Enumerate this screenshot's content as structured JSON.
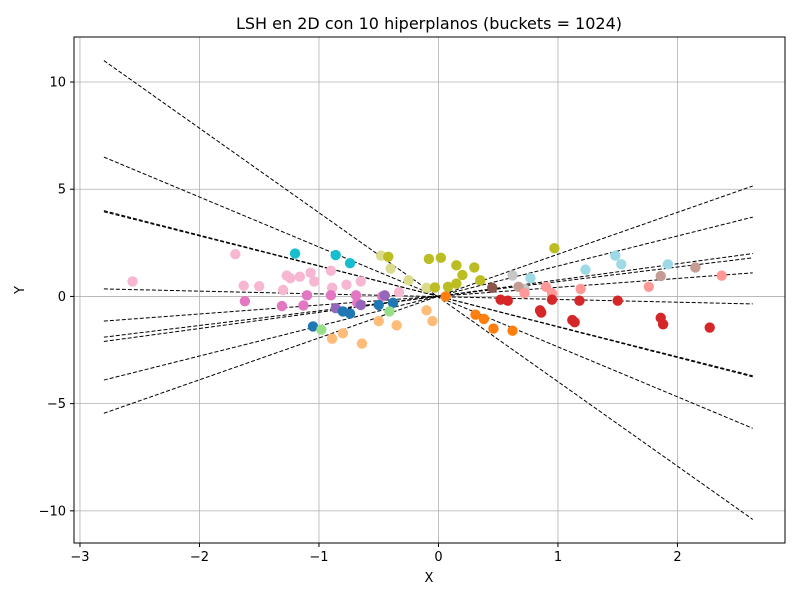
{
  "chart_data": {
    "type": "scatter",
    "title": "LSH en 2D con 10 hiperplanos (buckets = 1024)",
    "xlabel": "X",
    "ylabel": "Y",
    "xlim": [
      -3.05,
      2.9
    ],
    "ylim": [
      -11.5,
      12.1
    ],
    "grid": true,
    "xticks": [
      -3,
      -2,
      -1,
      0,
      1,
      2
    ],
    "yticks": [
      -10,
      -5,
      0,
      5,
      10
    ],
    "xtick_labels": [
      "−3",
      "−2",
      "−1",
      "0",
      "1",
      "2"
    ],
    "ytick_labels": [
      "−10",
      "−5",
      "0",
      "5",
      "10"
    ],
    "hyperplanes": [
      {
        "x": [
          -2.8,
          2.63
        ],
        "y": [
          11.0,
          -10.4
        ]
      },
      {
        "x": [
          -2.8,
          2.63
        ],
        "y": [
          6.5,
          -6.15
        ]
      },
      {
        "x": [
          -2.8,
          2.63
        ],
        "y": [
          4.0,
          -3.75
        ]
      },
      {
        "x": [
          -2.8,
          2.63
        ],
        "y": [
          3.95,
          -3.7
        ]
      },
      {
        "x": [
          -2.8,
          2.63
        ],
        "y": [
          0.35,
          -0.35
        ]
      },
      {
        "x": [
          -2.8,
          2.63
        ],
        "y": [
          -1.15,
          1.1
        ]
      },
      {
        "x": [
          -2.8,
          2.63
        ],
        "y": [
          -1.9,
          1.8
        ]
      },
      {
        "x": [
          -2.8,
          2.63
        ],
        "y": [
          -2.1,
          2.0
        ]
      },
      {
        "x": [
          -2.8,
          2.63
        ],
        "y": [
          -3.9,
          3.7
        ]
      },
      {
        "x": [
          -2.8,
          2.63
        ],
        "y": [
          -5.45,
          5.15
        ]
      }
    ],
    "points": [
      {
        "x": -2.56,
        "y": 0.7,
        "color": "#f7b6d2"
      },
      {
        "x": -1.7,
        "y": 1.97,
        "color": "#f7b6d2"
      },
      {
        "x": -1.63,
        "y": 0.5,
        "color": "#f7b6d2"
      },
      {
        "x": -1.5,
        "y": 0.48,
        "color": "#f7b6d2"
      },
      {
        "x": -1.3,
        "y": 0.3,
        "color": "#f7b6d2"
      },
      {
        "x": -1.27,
        "y": 0.97,
        "color": "#f7b6d2"
      },
      {
        "x": -1.24,
        "y": 0.85,
        "color": "#f7b6d2"
      },
      {
        "x": -1.16,
        "y": 0.92,
        "color": "#f7b6d2"
      },
      {
        "x": -1.07,
        "y": 1.1,
        "color": "#f7b6d2"
      },
      {
        "x": -1.04,
        "y": 0.7,
        "color": "#f7b6d2"
      },
      {
        "x": -0.9,
        "y": 1.2,
        "color": "#f7b6d2"
      },
      {
        "x": -0.89,
        "y": 0.4,
        "color": "#f7b6d2"
      },
      {
        "x": -0.77,
        "y": 0.55,
        "color": "#f7b6d2"
      },
      {
        "x": -0.65,
        "y": 0.7,
        "color": "#f7b6d2"
      },
      {
        "x": -0.33,
        "y": 0.2,
        "color": "#f7b6d2"
      },
      {
        "x": -1.62,
        "y": -0.22,
        "color": "#e377c2"
      },
      {
        "x": -1.31,
        "y": -0.45,
        "color": "#e377c2"
      },
      {
        "x": -1.13,
        "y": -0.42,
        "color": "#e377c2"
      },
      {
        "x": -1.1,
        "y": 0.05,
        "color": "#e377c2"
      },
      {
        "x": -0.9,
        "y": 0.05,
        "color": "#e377c2"
      },
      {
        "x": -0.69,
        "y": 0.05,
        "color": "#e377c2"
      },
      {
        "x": -0.68,
        "y": -0.3,
        "color": "#e377c2"
      },
      {
        "x": -0.47,
        "y": 0.0,
        "color": "#e377c2"
      },
      {
        "x": -0.86,
        "y": -0.55,
        "color": "#9467bd"
      },
      {
        "x": -0.65,
        "y": -0.4,
        "color": "#9467bd"
      },
      {
        "x": -0.45,
        "y": 0.05,
        "color": "#9467bd"
      },
      {
        "x": -1.05,
        "y": -1.4,
        "color": "#1f77b4"
      },
      {
        "x": -0.8,
        "y": -0.7,
        "color": "#1f77b4"
      },
      {
        "x": -0.74,
        "y": -0.8,
        "color": "#1f77b4"
      },
      {
        "x": -0.5,
        "y": -0.4,
        "color": "#1f77b4"
      },
      {
        "x": -0.38,
        "y": -0.3,
        "color": "#1f77b4"
      },
      {
        "x": -1.2,
        "y": 2.0,
        "color": "#17becf"
      },
      {
        "x": -0.86,
        "y": 1.93,
        "color": "#17becf"
      },
      {
        "x": -0.74,
        "y": 1.55,
        "color": "#17becf"
      },
      {
        "x": 1.48,
        "y": 1.9,
        "color": "#9edae5"
      },
      {
        "x": 1.53,
        "y": 1.5,
        "color": "#9edae5"
      },
      {
        "x": 1.23,
        "y": 1.25,
        "color": "#9edae5"
      },
      {
        "x": 1.92,
        "y": 1.5,
        "color": "#9edae5"
      },
      {
        "x": 0.77,
        "y": 0.85,
        "color": "#9edae5"
      },
      {
        "x": -0.89,
        "y": -1.97,
        "color": "#ffbb78"
      },
      {
        "x": -0.8,
        "y": -1.72,
        "color": "#ffbb78"
      },
      {
        "x": -0.64,
        "y": -2.2,
        "color": "#ffbb78"
      },
      {
        "x": -0.5,
        "y": -1.15,
        "color": "#ffbb78"
      },
      {
        "x": -0.35,
        "y": -1.35,
        "color": "#ffbb78"
      },
      {
        "x": -0.1,
        "y": -0.65,
        "color": "#ffbb78"
      },
      {
        "x": -0.05,
        "y": -1.15,
        "color": "#ffbb78"
      },
      {
        "x": 0.31,
        "y": -0.85,
        "color": "#ff7f0e"
      },
      {
        "x": 0.38,
        "y": -1.05,
        "color": "#ff7f0e"
      },
      {
        "x": 0.46,
        "y": -1.5,
        "color": "#ff7f0e"
      },
      {
        "x": 0.62,
        "y": -1.6,
        "color": "#ff7f0e"
      },
      {
        "x": 0.06,
        "y": 0.0,
        "color": "#ff7f0e"
      },
      {
        "x": -0.98,
        "y": -1.55,
        "color": "#98df8a"
      },
      {
        "x": -0.41,
        "y": -0.7,
        "color": "#98df8a"
      },
      {
        "x": -0.48,
        "y": 1.9,
        "color": "#dbdb8d"
      },
      {
        "x": -0.4,
        "y": 1.3,
        "color": "#dbdb8d"
      },
      {
        "x": -0.25,
        "y": 0.75,
        "color": "#dbdb8d"
      },
      {
        "x": -0.1,
        "y": 0.4,
        "color": "#dbdb8d"
      },
      {
        "x": -0.42,
        "y": 1.85,
        "color": "#bcbd22"
      },
      {
        "x": -0.08,
        "y": 1.75,
        "color": "#bcbd22"
      },
      {
        "x": 0.02,
        "y": 1.8,
        "color": "#bcbd22"
      },
      {
        "x": 0.15,
        "y": 1.45,
        "color": "#bcbd22"
      },
      {
        "x": 0.3,
        "y": 1.35,
        "color": "#bcbd22"
      },
      {
        "x": 0.2,
        "y": 1.0,
        "color": "#bcbd22"
      },
      {
        "x": 0.35,
        "y": 0.75,
        "color": "#bcbd22"
      },
      {
        "x": 0.15,
        "y": 0.6,
        "color": "#bcbd22"
      },
      {
        "x": 0.08,
        "y": 0.45,
        "color": "#bcbd22"
      },
      {
        "x": -0.03,
        "y": 0.42,
        "color": "#bcbd22"
      },
      {
        "x": 0.97,
        "y": 2.25,
        "color": "#bcbd22"
      },
      {
        "x": 0.62,
        "y": 0.98,
        "color": "#c7c7c7"
      },
      {
        "x": 0.72,
        "y": 0.35,
        "color": "#c7c7c7"
      },
      {
        "x": 0.45,
        "y": 0.4,
        "color": "#8c564b"
      },
      {
        "x": 0.67,
        "y": 0.45,
        "color": "#c49c94"
      },
      {
        "x": 1.86,
        "y": 0.95,
        "color": "#c49c94"
      },
      {
        "x": 2.15,
        "y": 1.35,
        "color": "#c49c94"
      },
      {
        "x": 0.72,
        "y": 0.15,
        "color": "#ff9896"
      },
      {
        "x": 0.9,
        "y": 0.45,
        "color": "#ff9896"
      },
      {
        "x": 0.95,
        "y": 0.15,
        "color": "#ff9896"
      },
      {
        "x": 1.19,
        "y": 0.35,
        "color": "#ff9896"
      },
      {
        "x": 1.76,
        "y": 0.45,
        "color": "#ff9896"
      },
      {
        "x": 2.37,
        "y": 0.97,
        "color": "#ff9896"
      },
      {
        "x": 0.52,
        "y": -0.15,
        "color": "#d62728"
      },
      {
        "x": 0.58,
        "y": -0.2,
        "color": "#d62728"
      },
      {
        "x": 0.85,
        "y": -0.65,
        "color": "#d62728"
      },
      {
        "x": 0.86,
        "y": -0.75,
        "color": "#d62728"
      },
      {
        "x": 0.95,
        "y": -0.15,
        "color": "#d62728"
      },
      {
        "x": 1.12,
        "y": -1.1,
        "color": "#d62728"
      },
      {
        "x": 1.14,
        "y": -1.2,
        "color": "#d62728"
      },
      {
        "x": 1.18,
        "y": -0.2,
        "color": "#d62728"
      },
      {
        "x": 1.5,
        "y": -0.2,
        "color": "#d62728"
      },
      {
        "x": 1.86,
        "y": -1.0,
        "color": "#d62728"
      },
      {
        "x": 1.88,
        "y": -1.3,
        "color": "#d62728"
      },
      {
        "x": 2.27,
        "y": -1.45,
        "color": "#d62728"
      }
    ]
  }
}
